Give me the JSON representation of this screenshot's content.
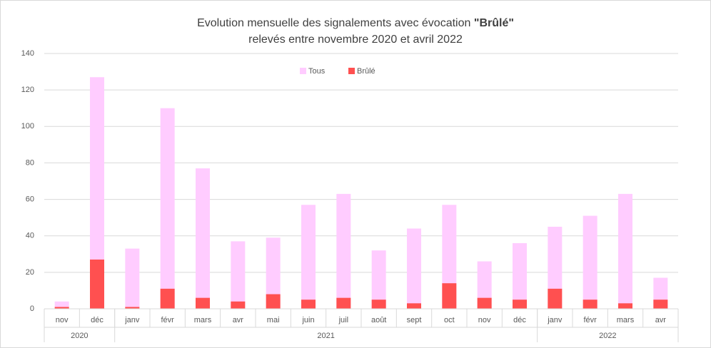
{
  "chart_data": {
    "type": "bar",
    "title": "Evolution mensuelle des signalements avec évocation",
    "title_emphasis": "\"Brûlé\"",
    "subtitle": "relevés entre novembre 2020 et avril 2022",
    "categories": [
      "nov",
      "déc",
      "janv",
      "févr",
      "mars",
      "avr",
      "mai",
      "juin",
      "juil",
      "août",
      "sept",
      "oct",
      "nov",
      "déc",
      "janv",
      "févr",
      "mars",
      "avr"
    ],
    "groups": [
      {
        "label": "2020",
        "count": 2
      },
      {
        "label": "2021",
        "count": 12
      },
      {
        "label": "2022",
        "count": 4
      }
    ],
    "series": [
      {
        "name": "Tous",
        "color": "#ffccff",
        "values": [
          4,
          127,
          33,
          110,
          77,
          37,
          39,
          57,
          63,
          32,
          44,
          57,
          26,
          36,
          45,
          51,
          63,
          17
        ]
      },
      {
        "name": "Brûlé",
        "color": "#ff5050",
        "values": [
          1,
          27,
          1,
          11,
          6,
          4,
          8,
          5,
          6,
          5,
          3,
          14,
          6,
          5,
          11,
          5,
          3,
          5
        ]
      }
    ],
    "overlap": true,
    "ylim": [
      0,
      140
    ],
    "yticks": [
      0,
      20,
      40,
      60,
      80,
      100,
      120,
      140
    ],
    "grid": true,
    "legend": "top"
  }
}
